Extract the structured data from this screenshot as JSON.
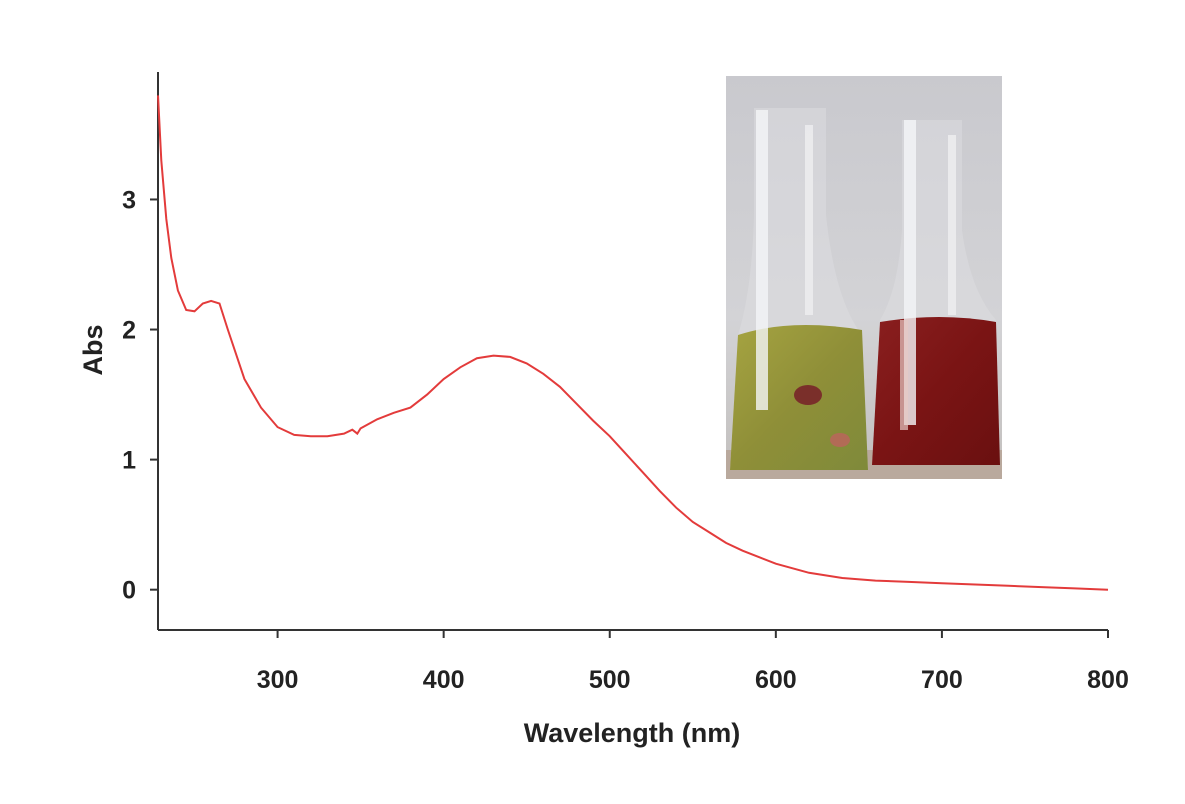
{
  "chart_data": {
    "type": "line",
    "title": "",
    "xlabel": "Wavelength (nm)",
    "ylabel": "Abs",
    "xlim": [
      228,
      800
    ],
    "ylim": [
      -0.31,
      3.98
    ],
    "x_ticks": [
      300,
      400,
      500,
      600,
      700,
      800
    ],
    "y_ticks": [
      0,
      1,
      2,
      3
    ],
    "grid": false,
    "line_color": "#e33b3b",
    "inset": "photo of two Erlenmeyer flasks: left with yellow-green liquid, right with dark red liquid",
    "series": [
      {
        "x": [
          228,
          230,
          233,
          236,
          240,
          245,
          250,
          255,
          260,
          265,
          270,
          280,
          290,
          300,
          310,
          320,
          330,
          340,
          345,
          348,
          350,
          360,
          370,
          380,
          390,
          400,
          410,
          420,
          430,
          440,
          450,
          460,
          470,
          480,
          490,
          500,
          510,
          520,
          530,
          540,
          550,
          560,
          570,
          580,
          590,
          600,
          620,
          640,
          660,
          680,
          700,
          720,
          740,
          760,
          780,
          800
        ],
        "y": [
          3.8,
          3.3,
          2.85,
          2.55,
          2.3,
          2.15,
          2.14,
          2.2,
          2.22,
          2.2,
          2.0,
          1.62,
          1.4,
          1.25,
          1.19,
          1.18,
          1.18,
          1.2,
          1.23,
          1.2,
          1.24,
          1.31,
          1.36,
          1.4,
          1.5,
          1.62,
          1.71,
          1.78,
          1.8,
          1.79,
          1.74,
          1.66,
          1.56,
          1.43,
          1.3,
          1.18,
          1.04,
          0.9,
          0.76,
          0.63,
          0.52,
          0.44,
          0.36,
          0.3,
          0.25,
          0.2,
          0.13,
          0.09,
          0.07,
          0.06,
          0.05,
          0.04,
          0.03,
          0.02,
          0.01,
          0.0
        ]
      }
    ]
  }
}
